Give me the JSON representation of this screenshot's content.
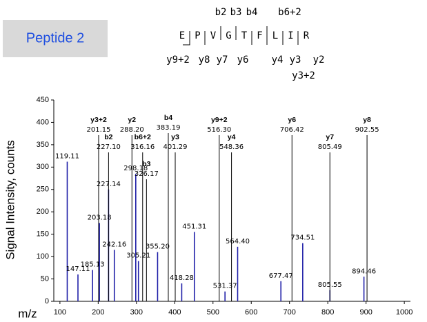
{
  "label": "Peptide 2",
  "peptide": {
    "residues": [
      "E",
      "P",
      "V",
      "G",
      "T",
      "F",
      "L",
      "I",
      "R"
    ],
    "b_ions": [
      "b2",
      "b3",
      "b4",
      "b6+2"
    ],
    "y_ions": [
      "y9+2",
      "y8",
      "y7",
      "y6",
      "y4",
      "y3",
      "y2",
      "y3+2"
    ]
  },
  "chart_data": {
    "type": "spectrum",
    "y_label": "Signal Intensity, counts",
    "x_label": "m/z",
    "xlim": [
      84,
      1016
    ],
    "xticks": [
      100,
      200,
      300,
      400,
      500,
      600,
      700,
      800,
      900,
      1000
    ],
    "ylim": [
      0,
      450
    ],
    "yticks": [
      0,
      50,
      100,
      150,
      200,
      250,
      300,
      350,
      400,
      450
    ],
    "color": "#1f1fa8",
    "peaks": {
      "x": [
        119.11,
        147.11,
        185.13,
        203.18,
        227.14,
        242.16,
        298.18,
        305.21,
        355.2,
        418.28,
        451.31,
        531.37,
        564.4,
        677.47,
        734.51,
        805.55,
        894.46
      ],
      "labels": [
        "119.11",
        "147.11",
        "185.13",
        "203.18",
        "227.14",
        "242.16",
        "298.18",
        "305.21",
        "355.20",
        "418.28",
        "451.31",
        "531.37",
        "564.40",
        "677.47",
        "734.51",
        "805.55",
        "894.46"
      ],
      "values": [
        312,
        60,
        70,
        175,
        250,
        115,
        285,
        90,
        110,
        40,
        155,
        22,
        122,
        45,
        130,
        25,
        55
      ]
    },
    "annotations": [
      {
        "ion": "y3+2",
        "mz": 201.15,
        "label": "201.15"
      },
      {
        "ion": "b2",
        "mz": 227.1,
        "label": "227.10"
      },
      {
        "ion": "y2",
        "mz": 288.2,
        "label": "288.20"
      },
      {
        "ion": "b6+2",
        "mz": 316.16,
        "label": "316.16"
      },
      {
        "ion": "b3",
        "mz": 326.17,
        "label": "326.17"
      },
      {
        "ion": "b4",
        "mz": 383.19,
        "label": "383.19"
      },
      {
        "ion": "y3",
        "mz": 401.29,
        "label": "401.29"
      },
      {
        "ion": "y9+2",
        "mz": 516.3,
        "label": "516.30"
      },
      {
        "ion": "y4",
        "mz": 548.36,
        "label": "548.36"
      },
      {
        "ion": "y6",
        "mz": 706.42,
        "label": "706.42"
      },
      {
        "ion": "y7",
        "mz": 805.49,
        "label": "805.49"
      },
      {
        "ion": "y8",
        "mz": 902.55,
        "label": "902.55"
      }
    ]
  }
}
